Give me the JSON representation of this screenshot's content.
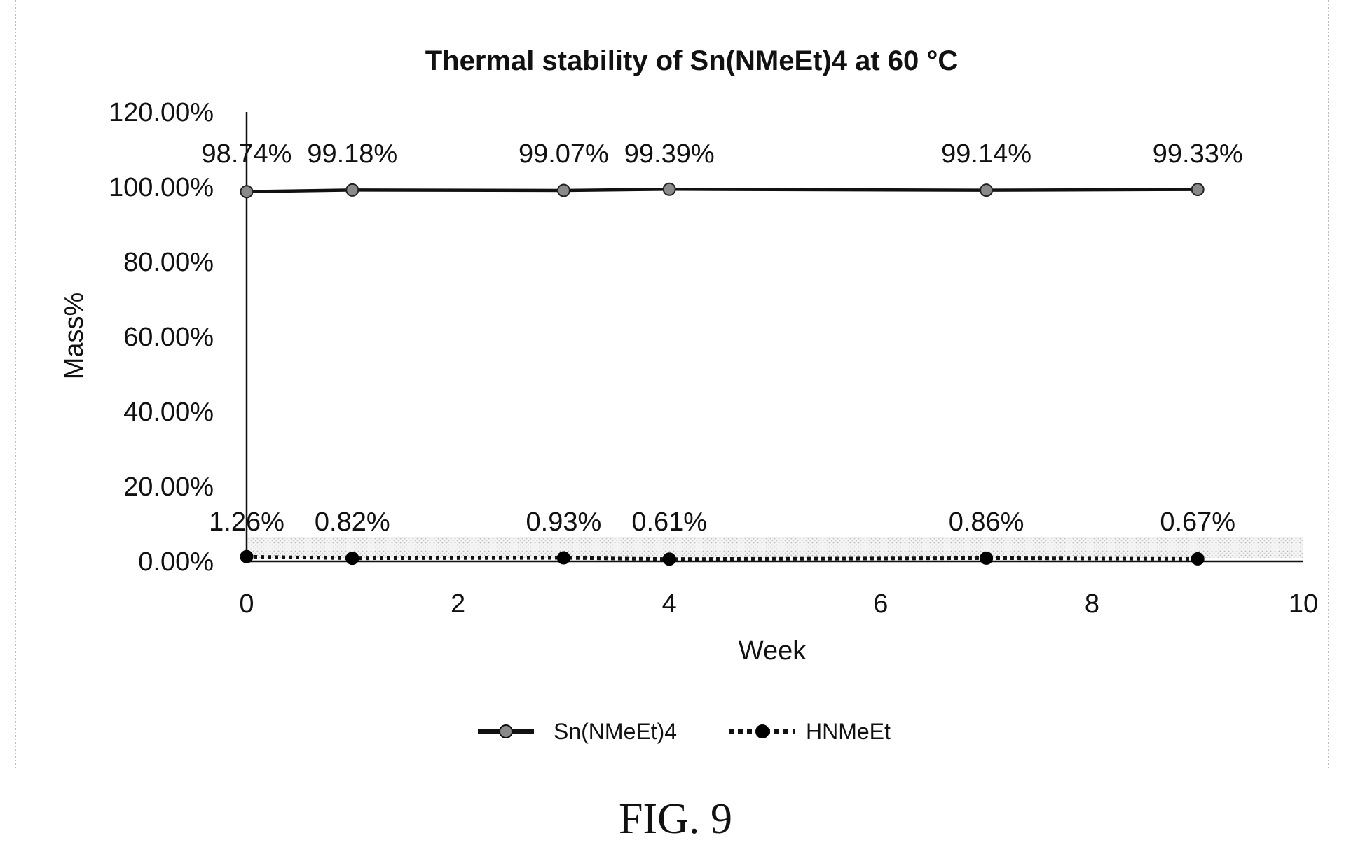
{
  "chart_data": {
    "type": "line",
    "title": "Thermal stability of Sn(NMeEt)4 at 60 °C",
    "xlabel": "Week",
    "ylabel": "Mass%",
    "xlim": [
      0,
      10
    ],
    "ylim": [
      0,
      1.2
    ],
    "x_ticks": [
      0,
      2,
      4,
      6,
      8,
      10
    ],
    "x_tick_labels": [
      "0",
      "2",
      "4",
      "6",
      "8",
      "10"
    ],
    "y_ticks": [
      0,
      0.2,
      0.4,
      0.6,
      0.8,
      1.0,
      1.2
    ],
    "y_tick_labels": [
      "0.00%",
      "20.00%",
      "40.00%",
      "60.00%",
      "80.00%",
      "100.00%",
      "120.00%"
    ],
    "grid": false,
    "legend_position": "bottom",
    "series": [
      {
        "name": "Sn(NMeEt)4",
        "x": [
          0,
          1,
          3,
          4,
          7,
          9
        ],
        "y": [
          0.9874,
          0.9918,
          0.9907,
          0.9939,
          0.9914,
          0.9933
        ],
        "labels": [
          "98.74%",
          "99.18%",
          "99.07%",
          "99.39%",
          "99.14%",
          "99.33%"
        ],
        "line_style": "solid",
        "marker_color": "#8a8a8a"
      },
      {
        "name": "HNMeEt",
        "x": [
          0,
          1,
          3,
          4,
          7,
          9
        ],
        "y": [
          0.0126,
          0.0082,
          0.0093,
          0.0061,
          0.0086,
          0.0067
        ],
        "labels": [
          "1.26%",
          "0.82%",
          "0.93%",
          "0.61%",
          "0.86%",
          "0.67%"
        ],
        "line_style": "dotted",
        "marker_color": "#000000"
      }
    ]
  },
  "figure_caption": "FIG. 9"
}
